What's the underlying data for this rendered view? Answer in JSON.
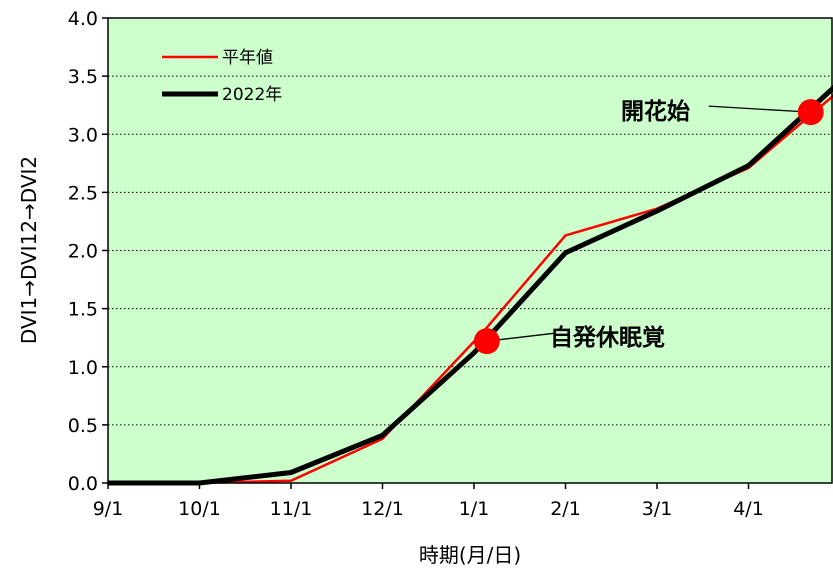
{
  "chart_data": {
    "type": "line",
    "xlabel": "時期(月/日)",
    "ylabel": "DVI1→DVI12→DVI2",
    "ylim": [
      0,
      4.0
    ],
    "y_ticks": [
      "0.0",
      "0.5",
      "1.0",
      "1.5",
      "2.0",
      "2.5",
      "3.0",
      "3.5",
      "4.0"
    ],
    "x_ticks": [
      "9/1",
      "10/1",
      "11/1",
      "12/1",
      "1/1",
      "2/1",
      "3/1",
      "4/1"
    ],
    "grid": "horizontal dotted",
    "background_color": "#ccffcc",
    "legend_position": "top-left",
    "series": [
      {
        "name": "平年値",
        "color": "#ff0000",
        "x": [
          0,
          1,
          2,
          3,
          4.1,
          5,
          6,
          7,
          8
        ],
        "y": [
          0.0,
          0.0,
          0.02,
          0.38,
          1.3,
          2.13,
          2.36,
          2.71,
          3.38
        ]
      },
      {
        "name": "2022年",
        "color": "#000000",
        "x": [
          0,
          1,
          2,
          3,
          4,
          5,
          6,
          7,
          8
        ],
        "y": [
          0.0,
          0.0,
          0.09,
          0.41,
          1.12,
          1.98,
          2.34,
          2.73,
          3.45
        ]
      }
    ],
    "annotations": [
      {
        "label": "自発休眠覚",
        "x": 4.14,
        "y": 1.22,
        "marker_color": "#ff0000"
      },
      {
        "label": "開花始",
        "x": 7.68,
        "y": 3.19,
        "marker_color": "#ff0000"
      }
    ]
  }
}
